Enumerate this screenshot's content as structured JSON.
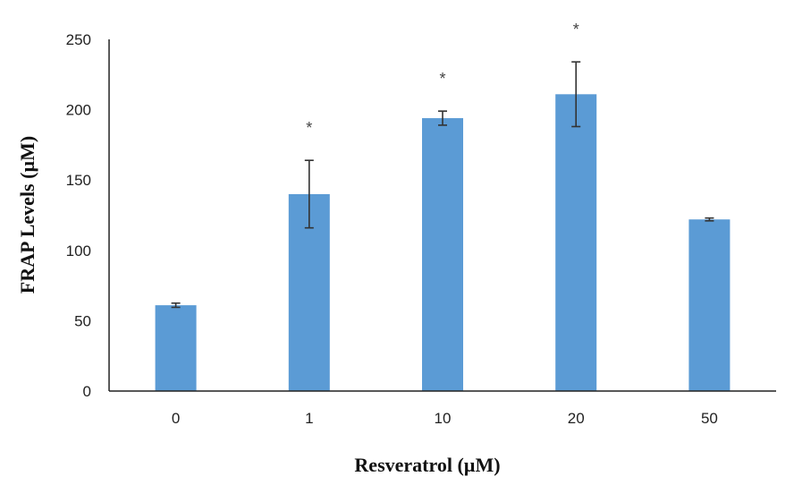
{
  "chart_data": {
    "type": "bar",
    "title": "",
    "xlabel": "Resveratrol (µM)",
    "ylabel": "FRAP Levels (µM)",
    "categories": [
      "0",
      "1",
      "10",
      "20",
      "50"
    ],
    "values": [
      61,
      140,
      194,
      211,
      122
    ],
    "errors": [
      1.5,
      24,
      5,
      23,
      1
    ],
    "significance": [
      "",
      "*",
      "*",
      "*",
      ""
    ],
    "ylim": [
      0,
      250
    ],
    "yticks": [
      0,
      50,
      100,
      150,
      200,
      250
    ],
    "grid": false,
    "colors": {
      "bar": "#5b9bd5",
      "error_bar": "#333333",
      "axis": "#222222"
    }
  }
}
